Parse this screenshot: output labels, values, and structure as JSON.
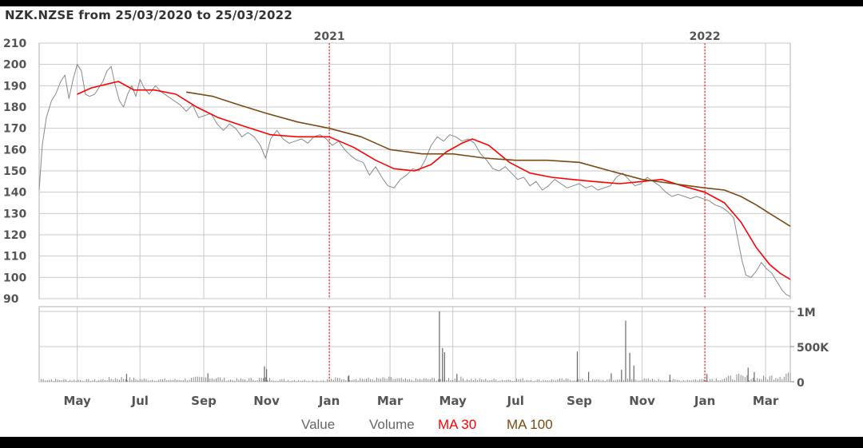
{
  "chart_data": {
    "type": "line",
    "title": "NZK.NZSE from 25/03/2020 to 25/03/2022",
    "x_range": [
      "2020-03-25",
      "2022-03-25"
    ],
    "price_axis": {
      "ylim": [
        90,
        210
      ],
      "ticks": [
        90,
        100,
        110,
        120,
        130,
        140,
        150,
        160,
        170,
        180,
        190,
        200,
        210
      ]
    },
    "volume_axis": {
      "ylim": [
        0,
        1000000
      ],
      "ticks": [
        {
          "value": 0,
          "label": "0"
        },
        {
          "value": 500000,
          "label": "500K"
        },
        {
          "value": 1000000,
          "label": "1M"
        }
      ]
    },
    "month_ticks": [
      {
        "date": "2020-05-01",
        "label": "May"
      },
      {
        "date": "2020-07-01",
        "label": "Jul"
      },
      {
        "date": "2020-09-01",
        "label": "Sep"
      },
      {
        "date": "2020-11-01",
        "label": "Nov"
      },
      {
        "date": "2021-01-01",
        "label": "Jan"
      },
      {
        "date": "2021-03-01",
        "label": "Mar"
      },
      {
        "date": "2021-05-01",
        "label": "May"
      },
      {
        "date": "2021-07-01",
        "label": "Jul"
      },
      {
        "date": "2021-09-01",
        "label": "Sep"
      },
      {
        "date": "2021-11-01",
        "label": "Nov"
      },
      {
        "date": "2022-01-01",
        "label": "Jan"
      },
      {
        "date": "2022-03-01",
        "label": "Mar"
      }
    ],
    "year_markers": [
      {
        "date": "2021-01-01",
        "label": "2021"
      },
      {
        "date": "2022-01-01",
        "label": "2022"
      }
    ],
    "grid": true,
    "legend_position": "bottom-center",
    "colors": {
      "value": "#888888",
      "volume": "#888888",
      "ma30": "#ff0000",
      "ma100": "#7b4a12",
      "grid": "#c8c8c8",
      "year_line": "#ff0000",
      "axis_text": "#555555"
    },
    "series": [
      {
        "name": "Value",
        "color": "#888888",
        "points": [
          [
            "2020-03-25",
            141
          ],
          [
            "2020-03-28",
            162
          ],
          [
            "2020-04-01",
            175
          ],
          [
            "2020-04-06",
            183
          ],
          [
            "2020-04-10",
            186
          ],
          [
            "2020-04-15",
            192
          ],
          [
            "2020-04-19",
            195
          ],
          [
            "2020-04-23",
            184
          ],
          [
            "2020-04-27",
            193
          ],
          [
            "2020-05-01",
            200
          ],
          [
            "2020-05-05",
            197
          ],
          [
            "2020-05-09",
            186
          ],
          [
            "2020-05-13",
            185
          ],
          [
            "2020-05-18",
            186
          ],
          [
            "2020-05-22",
            189
          ],
          [
            "2020-05-26",
            192
          ],
          [
            "2020-05-30",
            197
          ],
          [
            "2020-06-03",
            199
          ],
          [
            "2020-06-07",
            190
          ],
          [
            "2020-06-11",
            183
          ],
          [
            "2020-06-15",
            180
          ],
          [
            "2020-06-19",
            186
          ],
          [
            "2020-06-23",
            190
          ],
          [
            "2020-06-27",
            185
          ],
          [
            "2020-07-01",
            193
          ],
          [
            "2020-07-05",
            189
          ],
          [
            "2020-07-10",
            186
          ],
          [
            "2020-07-16",
            190
          ],
          [
            "2020-07-22",
            187
          ],
          [
            "2020-07-28",
            185
          ],
          [
            "2020-08-03",
            183
          ],
          [
            "2020-08-09",
            181
          ],
          [
            "2020-08-15",
            178
          ],
          [
            "2020-08-21",
            181
          ],
          [
            "2020-08-27",
            175
          ],
          [
            "2020-09-02",
            176
          ],
          [
            "2020-09-08",
            177
          ],
          [
            "2020-09-14",
            172
          ],
          [
            "2020-09-20",
            169
          ],
          [
            "2020-09-26",
            172
          ],
          [
            "2020-10-02",
            170
          ],
          [
            "2020-10-08",
            166
          ],
          [
            "2020-10-14",
            168
          ],
          [
            "2020-10-20",
            166
          ],
          [
            "2020-10-26",
            162
          ],
          [
            "2020-10-31",
            156
          ],
          [
            "2020-11-05",
            165
          ],
          [
            "2020-11-11",
            169
          ],
          [
            "2020-11-17",
            165
          ],
          [
            "2020-11-23",
            163
          ],
          [
            "2020-11-29",
            164
          ],
          [
            "2020-12-05",
            165
          ],
          [
            "2020-12-11",
            163
          ],
          [
            "2020-12-17",
            166
          ],
          [
            "2020-12-23",
            167
          ],
          [
            "2020-12-29",
            165
          ],
          [
            "2021-01-04",
            162
          ],
          [
            "2021-01-10",
            164
          ],
          [
            "2021-01-16",
            160
          ],
          [
            "2021-01-22",
            157
          ],
          [
            "2021-01-28",
            155
          ],
          [
            "2021-02-03",
            154
          ],
          [
            "2021-02-09",
            148
          ],
          [
            "2021-02-15",
            152
          ],
          [
            "2021-02-21",
            147
          ],
          [
            "2021-02-27",
            143
          ],
          [
            "2021-03-05",
            142
          ],
          [
            "2021-03-11",
            146
          ],
          [
            "2021-03-17",
            148
          ],
          [
            "2021-03-23",
            151
          ],
          [
            "2021-03-29",
            150
          ],
          [
            "2021-04-04",
            155
          ],
          [
            "2021-04-10",
            162
          ],
          [
            "2021-04-16",
            166
          ],
          [
            "2021-04-22",
            164
          ],
          [
            "2021-04-28",
            167
          ],
          [
            "2021-05-04",
            166
          ],
          [
            "2021-05-10",
            164
          ],
          [
            "2021-05-16",
            165
          ],
          [
            "2021-05-22",
            163
          ],
          [
            "2021-05-28",
            158
          ],
          [
            "2021-06-03",
            155
          ],
          [
            "2021-06-09",
            151
          ],
          [
            "2021-06-15",
            150
          ],
          [
            "2021-06-21",
            152
          ],
          [
            "2021-06-27",
            149
          ],
          [
            "2021-07-03",
            146
          ],
          [
            "2021-07-09",
            147
          ],
          [
            "2021-07-15",
            143
          ],
          [
            "2021-07-21",
            145
          ],
          [
            "2021-07-27",
            141
          ],
          [
            "2021-08-02",
            143
          ],
          [
            "2021-08-08",
            146
          ],
          [
            "2021-08-14",
            144
          ],
          [
            "2021-08-20",
            142
          ],
          [
            "2021-08-26",
            143
          ],
          [
            "2021-09-01",
            144
          ],
          [
            "2021-09-07",
            142
          ],
          [
            "2021-09-13",
            143
          ],
          [
            "2021-09-19",
            141
          ],
          [
            "2021-09-25",
            142
          ],
          [
            "2021-10-01",
            143
          ],
          [
            "2021-10-07",
            147
          ],
          [
            "2021-10-13",
            149
          ],
          [
            "2021-10-19",
            146
          ],
          [
            "2021-10-25",
            143
          ],
          [
            "2021-10-31",
            144
          ],
          [
            "2021-11-06",
            147
          ],
          [
            "2021-11-12",
            145
          ],
          [
            "2021-11-18",
            143
          ],
          [
            "2021-11-24",
            140
          ],
          [
            "2021-11-30",
            138
          ],
          [
            "2021-12-06",
            139
          ],
          [
            "2021-12-12",
            138
          ],
          [
            "2021-12-18",
            137
          ],
          [
            "2021-12-24",
            138
          ],
          [
            "2021-12-30",
            137
          ],
          [
            "2022-01-05",
            136
          ],
          [
            "2022-01-11",
            134
          ],
          [
            "2022-01-17",
            133
          ],
          [
            "2022-01-23",
            131
          ],
          [
            "2022-01-29",
            128
          ],
          [
            "2022-02-02",
            118
          ],
          [
            "2022-02-06",
            108
          ],
          [
            "2022-02-10",
            101
          ],
          [
            "2022-02-15",
            100
          ],
          [
            "2022-02-20",
            103
          ],
          [
            "2022-02-25",
            107
          ],
          [
            "2022-03-02",
            104
          ],
          [
            "2022-03-07",
            102
          ],
          [
            "2022-03-12",
            98
          ],
          [
            "2022-03-17",
            94
          ],
          [
            "2022-03-21",
            92
          ],
          [
            "2022-03-25",
            91
          ]
        ]
      },
      {
        "name": "MA 30",
        "color": "#ff0000",
        "points": [
          [
            "2020-05-01",
            186
          ],
          [
            "2020-05-15",
            189
          ],
          [
            "2020-06-01",
            191
          ],
          [
            "2020-06-10",
            192
          ],
          [
            "2020-06-25",
            188
          ],
          [
            "2020-07-15",
            188
          ],
          [
            "2020-08-05",
            186
          ],
          [
            "2020-08-25",
            180
          ],
          [
            "2020-09-15",
            175
          ],
          [
            "2020-10-10",
            171
          ],
          [
            "2020-11-05",
            167
          ],
          [
            "2020-12-01",
            166
          ],
          [
            "2021-01-01",
            166
          ],
          [
            "2021-01-25",
            161
          ],
          [
            "2021-02-15",
            155
          ],
          [
            "2021-03-05",
            151
          ],
          [
            "2021-03-25",
            150
          ],
          [
            "2021-04-10",
            153
          ],
          [
            "2021-04-25",
            159
          ],
          [
            "2021-05-10",
            163
          ],
          [
            "2021-05-20",
            165
          ],
          [
            "2021-06-05",
            162
          ],
          [
            "2021-06-25",
            154
          ],
          [
            "2021-07-15",
            149
          ],
          [
            "2021-08-05",
            147
          ],
          [
            "2021-08-25",
            146
          ],
          [
            "2021-09-15",
            145
          ],
          [
            "2021-10-10",
            144
          ],
          [
            "2021-11-01",
            145
          ],
          [
            "2021-11-20",
            146
          ],
          [
            "2021-12-10",
            143
          ],
          [
            "2022-01-01",
            140
          ],
          [
            "2022-01-20",
            135
          ],
          [
            "2022-02-05",
            126
          ],
          [
            "2022-02-20",
            114
          ],
          [
            "2022-03-05",
            106
          ],
          [
            "2022-03-15",
            102
          ],
          [
            "2022-03-25",
            99
          ]
        ]
      },
      {
        "name": "MA 100",
        "color": "#7b4a12",
        "points": [
          [
            "2020-08-15",
            187
          ],
          [
            "2020-09-10",
            185
          ],
          [
            "2020-10-05",
            181
          ],
          [
            "2020-11-01",
            177
          ],
          [
            "2020-12-01",
            173
          ],
          [
            "2021-01-01",
            170
          ],
          [
            "2021-02-01",
            166
          ],
          [
            "2021-03-01",
            160
          ],
          [
            "2021-04-01",
            158
          ],
          [
            "2021-05-01",
            158
          ],
          [
            "2021-06-01",
            156
          ],
          [
            "2021-07-01",
            155
          ],
          [
            "2021-08-01",
            155
          ],
          [
            "2021-09-01",
            154
          ],
          [
            "2021-10-01",
            150
          ],
          [
            "2021-11-01",
            146
          ],
          [
            "2021-12-01",
            144
          ],
          [
            "2022-01-01",
            142
          ],
          [
            "2022-01-20",
            141
          ],
          [
            "2022-02-05",
            138
          ],
          [
            "2022-02-20",
            134
          ],
          [
            "2022-03-05",
            130
          ],
          [
            "2022-03-25",
            124
          ]
        ]
      }
    ],
    "volume": {
      "name": "Volume",
      "baseline": [
        [
          "2020-03-28",
          40000
        ],
        [
          "2020-04-15",
          30000
        ],
        [
          "2020-05-20",
          25000
        ],
        [
          "2020-06-10",
          60000
        ],
        [
          "2020-06-20",
          45000
        ],
        [
          "2020-07-10",
          35000
        ],
        [
          "2020-08-05",
          30000
        ],
        [
          "2020-08-25",
          50000
        ],
        [
          "2020-09-10",
          70000
        ],
        [
          "2020-09-25",
          30000
        ],
        [
          "2020-10-15",
          40000
        ],
        [
          "2020-10-28",
          50000
        ],
        [
          "2020-11-15",
          30000
        ],
        [
          "2020-12-05",
          25000
        ],
        [
          "2020-12-25",
          20000
        ],
        [
          "2021-01-10",
          50000
        ],
        [
          "2021-01-25",
          60000
        ],
        [
          "2021-02-10",
          40000
        ],
        [
          "2021-03-01",
          50000
        ],
        [
          "2021-03-20",
          30000
        ],
        [
          "2021-04-01",
          40000
        ],
        [
          "2021-05-10",
          50000
        ],
        [
          "2021-05-25",
          35000
        ],
        [
          "2021-06-15",
          30000
        ],
        [
          "2021-07-05",
          40000
        ],
        [
          "2021-07-25",
          25000
        ],
        [
          "2021-08-15",
          35000
        ],
        [
          "2021-09-05",
          30000
        ],
        [
          "2021-09-25",
          25000
        ],
        [
          "2021-10-25",
          40000
        ],
        [
          "2021-11-15",
          30000
        ],
        [
          "2021-12-05",
          25000
        ],
        [
          "2022-01-05",
          40000
        ],
        [
          "2022-01-25",
          60000
        ],
        [
          "2022-02-01",
          80000
        ],
        [
          "2022-02-20",
          50000
        ],
        [
          "2022-03-05",
          70000
        ],
        [
          "2022-03-12",
          90000
        ],
        [
          "2022-03-18",
          110000
        ],
        [
          "2022-03-23",
          140000
        ]
      ],
      "spikes": [
        [
          "2020-06-18",
          110000
        ],
        [
          "2020-09-05",
          120000
        ],
        [
          "2020-10-30",
          220000
        ],
        [
          "2020-11-01",
          180000
        ],
        [
          "2021-01-20",
          90000
        ],
        [
          "2021-04-18",
          1000000
        ],
        [
          "2021-04-21",
          480000
        ],
        [
          "2021-04-23",
          420000
        ],
        [
          "2021-05-05",
          110000
        ],
        [
          "2021-08-30",
          430000
        ],
        [
          "2021-09-10",
          140000
        ],
        [
          "2021-10-02",
          120000
        ],
        [
          "2021-10-12",
          170000
        ],
        [
          "2021-10-16",
          870000
        ],
        [
          "2021-10-20",
          410000
        ],
        [
          "2021-10-24",
          230000
        ],
        [
          "2021-11-28",
          100000
        ],
        [
          "2022-01-03",
          110000
        ],
        [
          "2022-02-12",
          200000
        ],
        [
          "2022-02-18",
          140000
        ]
      ]
    },
    "legend": [
      "Value",
      "Volume",
      "MA 30",
      "MA 100"
    ]
  }
}
